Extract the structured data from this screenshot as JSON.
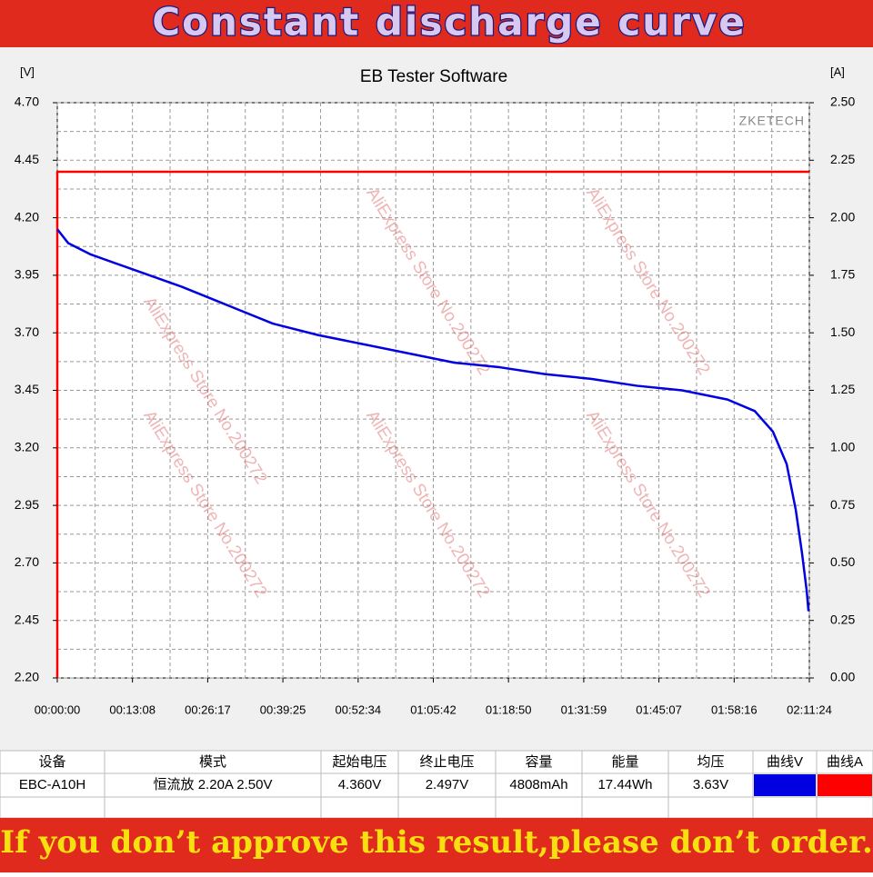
{
  "header": {
    "title": "Constant discharge curve"
  },
  "chart_data": {
    "type": "line",
    "title": "EB Tester Software",
    "brand": "ZKETECH",
    "y_unit": "[V]",
    "y2_unit": "[A]",
    "watermark": "AliExpress Store No.200272",
    "xlim": [
      0,
      7884
    ],
    "xticks": [
      {
        "value": 0,
        "label": "00:00:00"
      },
      {
        "value": 788,
        "label": "00:13:08"
      },
      {
        "value": 1577,
        "label": "00:26:17"
      },
      {
        "value": 2365,
        "label": "00:39:25"
      },
      {
        "value": 3154,
        "label": "00:52:34"
      },
      {
        "value": 3942,
        "label": "01:05:42"
      },
      {
        "value": 4730,
        "label": "01:18:50"
      },
      {
        "value": 5519,
        "label": "01:31:59"
      },
      {
        "value": 6307,
        "label": "01:45:07"
      },
      {
        "value": 7096,
        "label": "01:58:16"
      },
      {
        "value": 7884,
        "label": "02:11:24"
      }
    ],
    "ylim": [
      2.2,
      4.7
    ],
    "yticks": [
      {
        "value": 2.2,
        "label": "2.20"
      },
      {
        "value": 2.45,
        "label": "2.45"
      },
      {
        "value": 2.7,
        "label": "2.70"
      },
      {
        "value": 2.95,
        "label": "2.95"
      },
      {
        "value": 3.2,
        "label": "3.20"
      },
      {
        "value": 3.45,
        "label": "3.45"
      },
      {
        "value": 3.7,
        "label": "3.70"
      },
      {
        "value": 3.95,
        "label": "3.95"
      },
      {
        "value": 4.2,
        "label": "4.20"
      },
      {
        "value": 4.45,
        "label": "4.45"
      },
      {
        "value": 4.7,
        "label": "4.70"
      }
    ],
    "y2lim": [
      0,
      2.5
    ],
    "y2ticks": [
      {
        "value": 0,
        "label": "0.00"
      },
      {
        "value": 0.25,
        "label": "0.25"
      },
      {
        "value": 0.5,
        "label": "0.50"
      },
      {
        "value": 0.75,
        "label": "0.75"
      },
      {
        "value": 1,
        "label": "1.00"
      },
      {
        "value": 1.25,
        "label": "1.25"
      },
      {
        "value": 1.5,
        "label": "1.50"
      },
      {
        "value": 1.75,
        "label": "1.75"
      },
      {
        "value": 2,
        "label": "2.00"
      },
      {
        "value": 2.25,
        "label": "2.25"
      },
      {
        "value": 2.5,
        "label": "2.50"
      }
    ],
    "grid": true,
    "series": [
      {
        "name": "曲线V",
        "color": "#0000e0",
        "x": [
          0,
          114,
          353,
          829,
          1306,
          1783,
          2260,
          2736,
          3213,
          3690,
          4166,
          4643,
          5119,
          5596,
          6073,
          6549,
          7026,
          7312,
          7503,
          7646,
          7742,
          7808,
          7856,
          7875
        ],
        "values": [
          4.15,
          4.09,
          4.04,
          3.97,
          3.9,
          3.82,
          3.74,
          3.69,
          3.65,
          3.61,
          3.57,
          3.55,
          3.52,
          3.5,
          3.47,
          3.45,
          3.41,
          3.36,
          3.27,
          3.13,
          2.93,
          2.74,
          2.58,
          2.49
        ]
      },
      {
        "name": "曲线A",
        "color": "#ff0000",
        "axis": "y2",
        "x": [
          0,
          0,
          7884
        ],
        "values": [
          0,
          2.2,
          2.2
        ]
      }
    ]
  },
  "table": {
    "headers": [
      "设备",
      "模式",
      "起始电压",
      "终止电压",
      "容量",
      "能量",
      "均压"
    ],
    "rows": [
      [
        "EBC-A10H",
        "恒流放 2.20A 2.50V",
        "4.360V",
        "2.497V",
        "4808mAh",
        "17.44Wh",
        "3.63V"
      ]
    ]
  },
  "footer": {
    "text": "If you don’t approve this result,please don’t order."
  }
}
